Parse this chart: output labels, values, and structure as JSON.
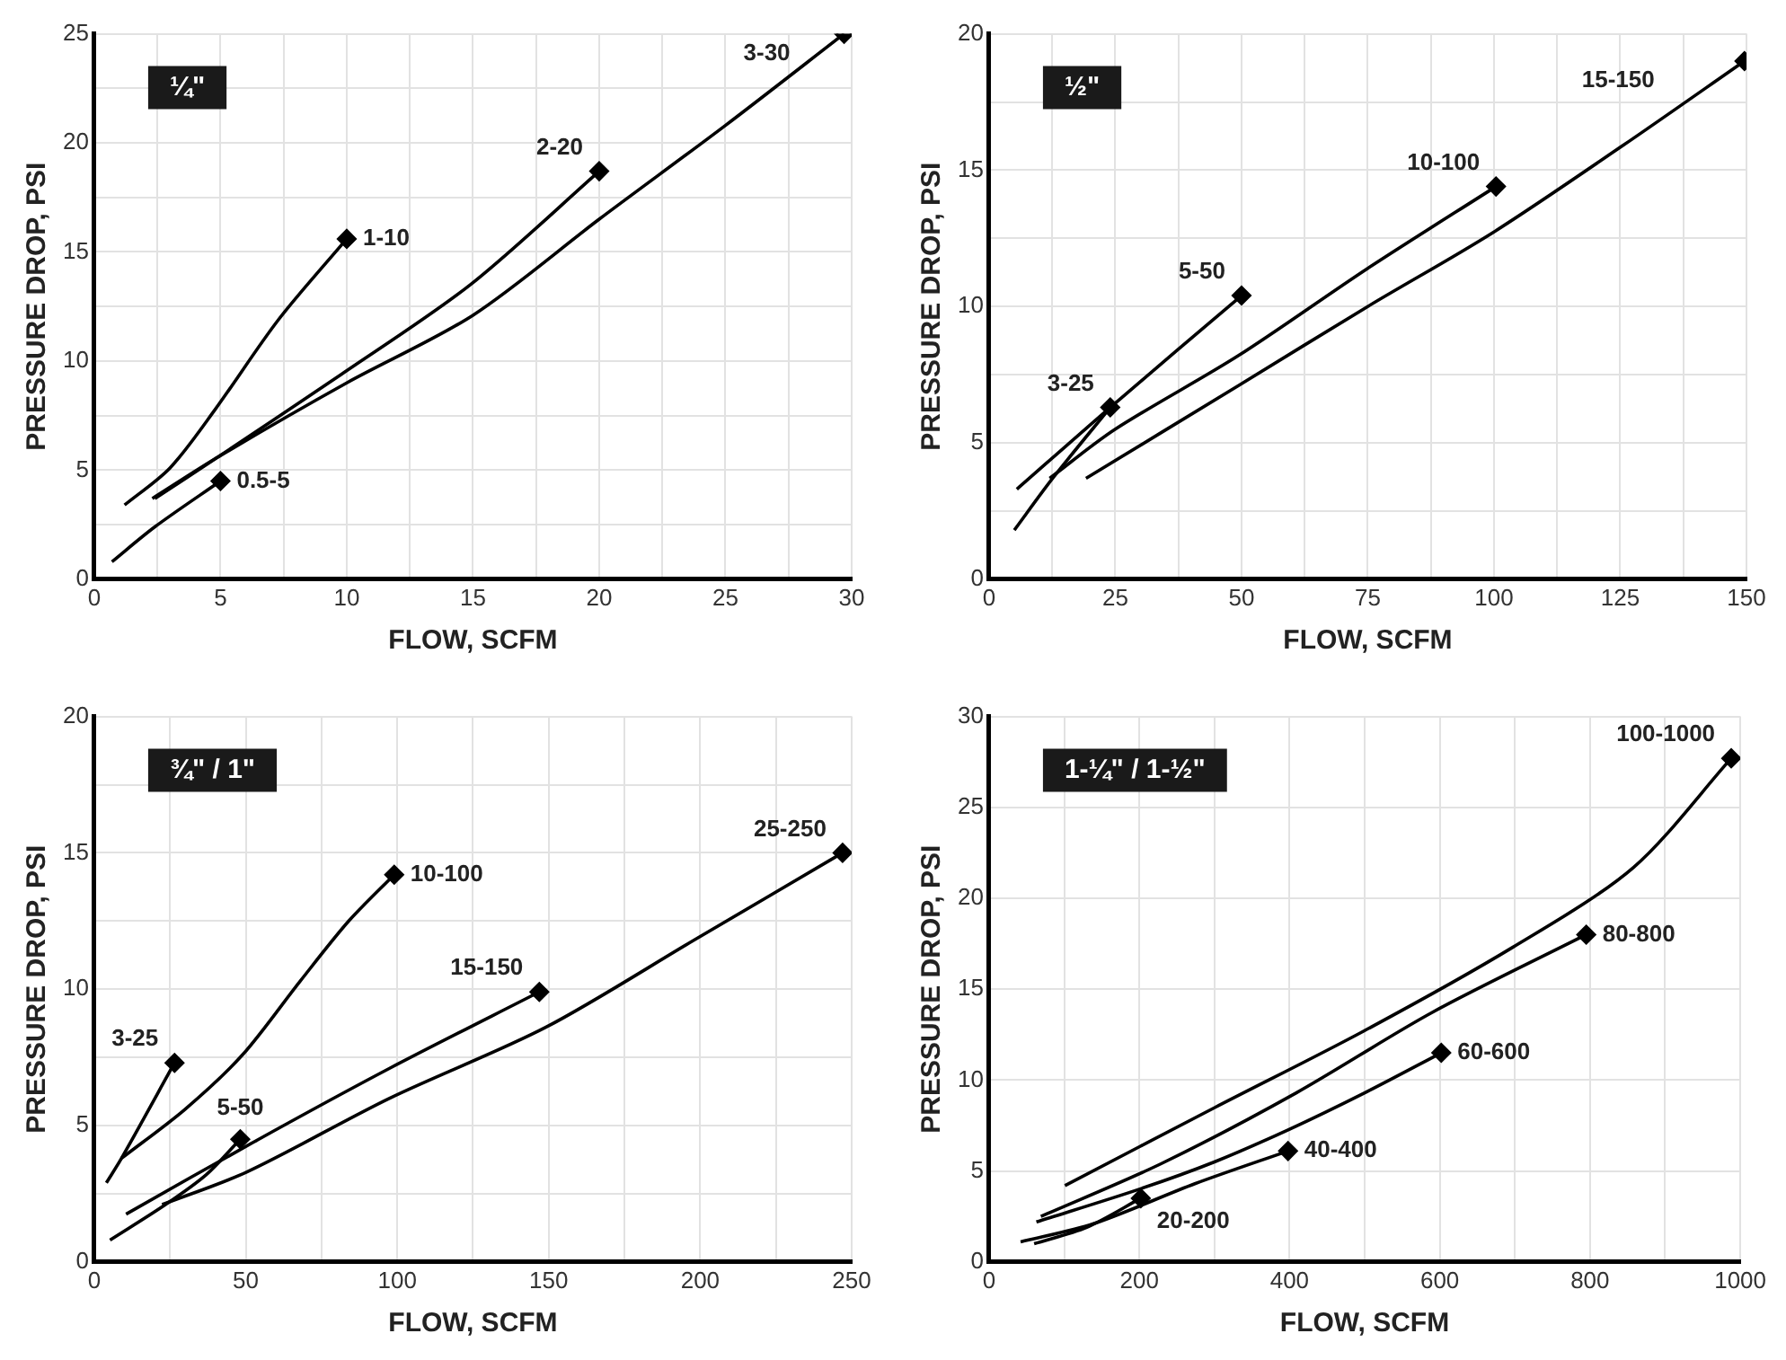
{
  "chart_data": [
    {
      "type": "line",
      "title": "¼\"",
      "xlabel": "FLOW, SCFM",
      "ylabel": "PRESSURE DROP, PSI",
      "xlim": [
        0,
        30
      ],
      "ylim": [
        0,
        25
      ],
      "xticks": [
        0,
        {
          "value": 2.5,
          "label": null
        },
        5,
        {
          "value": 7.5,
          "label": null
        },
        10,
        {
          "value": 12.5,
          "label": null
        },
        15,
        {
          "value": 17.5,
          "label": null
        },
        20,
        {
          "value": 22.5,
          "label": null
        },
        25,
        {
          "value": 27.5,
          "label": null
        },
        30
      ],
      "yticks": [
        0,
        {
          "value": 2.5,
          "label": null
        },
        5,
        {
          "value": 7.5,
          "label": null
        },
        10,
        {
          "value": 12.5,
          "label": null
        },
        15,
        {
          "value": 17.5,
          "label": null
        },
        20,
        {
          "value": 22.5,
          "label": null
        },
        25
      ],
      "grid": true,
      "series": [
        {
          "name": "0.5-5",
          "color": "#000000",
          "x": [
            0.7,
            2.4,
            5
          ],
          "values": [
            0.8,
            2.4,
            4.5
          ]
        },
        {
          "name": "1-10",
          "color": "#000000",
          "x": [
            1.2,
            3,
            4.8,
            7.3,
            10
          ],
          "values": [
            3.4,
            5.1,
            7.8,
            11.9,
            15.6
          ]
        },
        {
          "name": "2-20",
          "color": "#000000",
          "x": [
            2.4,
            4.9,
            9.8,
            14.9,
            20
          ],
          "values": [
            3.7,
            5.6,
            9.4,
            13.5,
            18.7
          ]
        },
        {
          "name": "3-30",
          "color": "#000000",
          "x": [
            2.3,
            4.9,
            10,
            15,
            20,
            25,
            29.7
          ],
          "values": [
            3.7,
            5.6,
            9,
            12.1,
            16.5,
            20.8,
            25
          ]
        }
      ]
    },
    {
      "type": "line",
      "title": "½\"",
      "xlabel": "FLOW, SCFM",
      "ylabel": "PRESSURE DROP, PSI",
      "xlim": [
        0,
        150
      ],
      "ylim": [
        0,
        20
      ],
      "xticks": [
        0,
        {
          "value": 12.5,
          "label": null
        },
        25,
        {
          "value": 37.5,
          "label": null
        },
        50,
        {
          "value": 62.5,
          "label": null
        },
        75,
        {
          "value": 87.5,
          "label": null
        },
        100,
        {
          "value": 112.5,
          "label": null
        },
        125,
        {
          "value": 137.5,
          "label": null
        },
        150
      ],
      "yticks": [
        0,
        {
          "value": 2.5,
          "label": null
        },
        5,
        {
          "value": 7.5,
          "label": null
        },
        10,
        {
          "value": 12.5,
          "label": null
        },
        15,
        {
          "value": 17.5,
          "label": null
        },
        20
      ],
      "grid": true,
      "series": [
        {
          "name": "3-25",
          "color": "#000000",
          "x": [
            5,
            12.6,
            24
          ],
          "values": [
            1.8,
            3.7,
            6.3
          ]
        },
        {
          "name": "5-50",
          "color": "#000000",
          "x": [
            5.5,
            24,
            50
          ],
          "values": [
            3.3,
            6.3,
            10.4
          ]
        },
        {
          "name": "10-100",
          "color": "#000000",
          "x": [
            12,
            25,
            49.4,
            75,
            100.4
          ],
          "values": [
            3.7,
            5.5,
            8.2,
            11.4,
            14.4
          ]
        },
        {
          "name": "15-150",
          "color": "#000000",
          "x": [
            19.2,
            49.4,
            75,
            99.7,
            125.5,
            149.6
          ],
          "values": [
            3.7,
            7.1,
            10,
            12.7,
            15.9,
            19
          ]
        }
      ]
    },
    {
      "type": "line",
      "title": "¾\" / 1\"",
      "xlabel": "FLOW, SCFM",
      "ylabel": "PRESSURE DROP, PSI",
      "xlim": [
        0,
        250
      ],
      "ylim": [
        0,
        20
      ],
      "xticks": [
        0,
        {
          "value": 25,
          "label": null
        },
        50,
        {
          "value": 75,
          "label": null
        },
        100,
        {
          "value": 125,
          "label": null
        },
        150,
        {
          "value": 175,
          "label": null
        },
        200,
        {
          "value": 225,
          "label": null
        },
        250
      ],
      "yticks": [
        0,
        {
          "value": 2.5,
          "label": null
        },
        5,
        {
          "value": 7.5,
          "label": null
        },
        10,
        {
          "value": 12.5,
          "label": null
        },
        15,
        {
          "value": 17.5,
          "label": null
        },
        20
      ],
      "grid": true,
      "series": [
        {
          "name": "3-25",
          "color": "#000000",
          "x": [
            4,
            9,
            26.5
          ],
          "values": [
            2.9,
            3.8,
            7.3
          ]
        },
        {
          "name": "10-100",
          "color": "#000000",
          "x": [
            9,
            30,
            49,
            68,
            84,
            99
          ],
          "values": [
            3.8,
            5.6,
            7.6,
            10.3,
            12.5,
            14.2
          ]
        },
        {
          "name": "5-50",
          "color": "#000000",
          "x": [
            5.2,
            23.5,
            37,
            48.2
          ],
          "values": [
            0.8,
            2.1,
            3.2,
            4.5
          ]
        },
        {
          "name": "15-150",
          "color": "#000000",
          "x": [
            10.5,
            52.7,
            97.5,
            146.9
          ],
          "values": [
            1.75,
            4.4,
            7.1,
            9.9
          ]
        },
        {
          "name": "25-250",
          "color": "#000000",
          "x": [
            22.4,
            50.4,
            97.5,
            149,
            198,
            247
          ],
          "values": [
            2.1,
            3.3,
            6,
            8.6,
            11.8,
            15
          ]
        }
      ]
    },
    {
      "type": "line",
      "title": "1-¼\" / 1-½\"",
      "xlabel": "FLOW, SCFM",
      "ylabel": "PRESSURE DROP, PSI",
      "xlim": [
        0,
        1000
      ],
      "ylim": [
        0,
        30
      ],
      "xticks": [
        0,
        {
          "value": 100,
          "label": null
        },
        200,
        {
          "value": 300,
          "label": null
        },
        400,
        {
          "value": 500,
          "label": null
        },
        600,
        {
          "value": 700,
          "label": null
        },
        800,
        {
          "value": 900,
          "label": null
        },
        1000
      ],
      "yticks": [
        0,
        5,
        10,
        15,
        20,
        25,
        30
      ],
      "grid": true,
      "series": [
        {
          "name": "20-200",
          "color": "#000000",
          "x": [
            60,
            130,
            202
          ],
          "values": [
            1,
            1.9,
            3.5
          ]
        },
        {
          "name": "40-400",
          "color": "#000000",
          "x": [
            42,
            139,
            274,
            398
          ],
          "values": [
            1.1,
            2.1,
            4.3,
            6.1
          ]
        },
        {
          "name": "60-600",
          "color": "#000000",
          "x": [
            63,
            200,
            300,
            400,
            500,
            602
          ],
          "values": [
            2.2,
            4,
            5.5,
            7.3,
            9.3,
            11.5
          ]
        },
        {
          "name": "80-800",
          "color": "#000000",
          "x": [
            69,
            229,
            409,
            589,
            795
          ],
          "values": [
            2.5,
            5.4,
            9.3,
            13.7,
            18
          ]
        },
        {
          "name": "100-1000",
          "color": "#000000",
          "x": [
            101,
            301,
            499,
            697,
            858,
            988
          ],
          "values": [
            4.2,
            8.5,
            12.7,
            17.3,
            21.7,
            27.7
          ]
        }
      ]
    }
  ]
}
